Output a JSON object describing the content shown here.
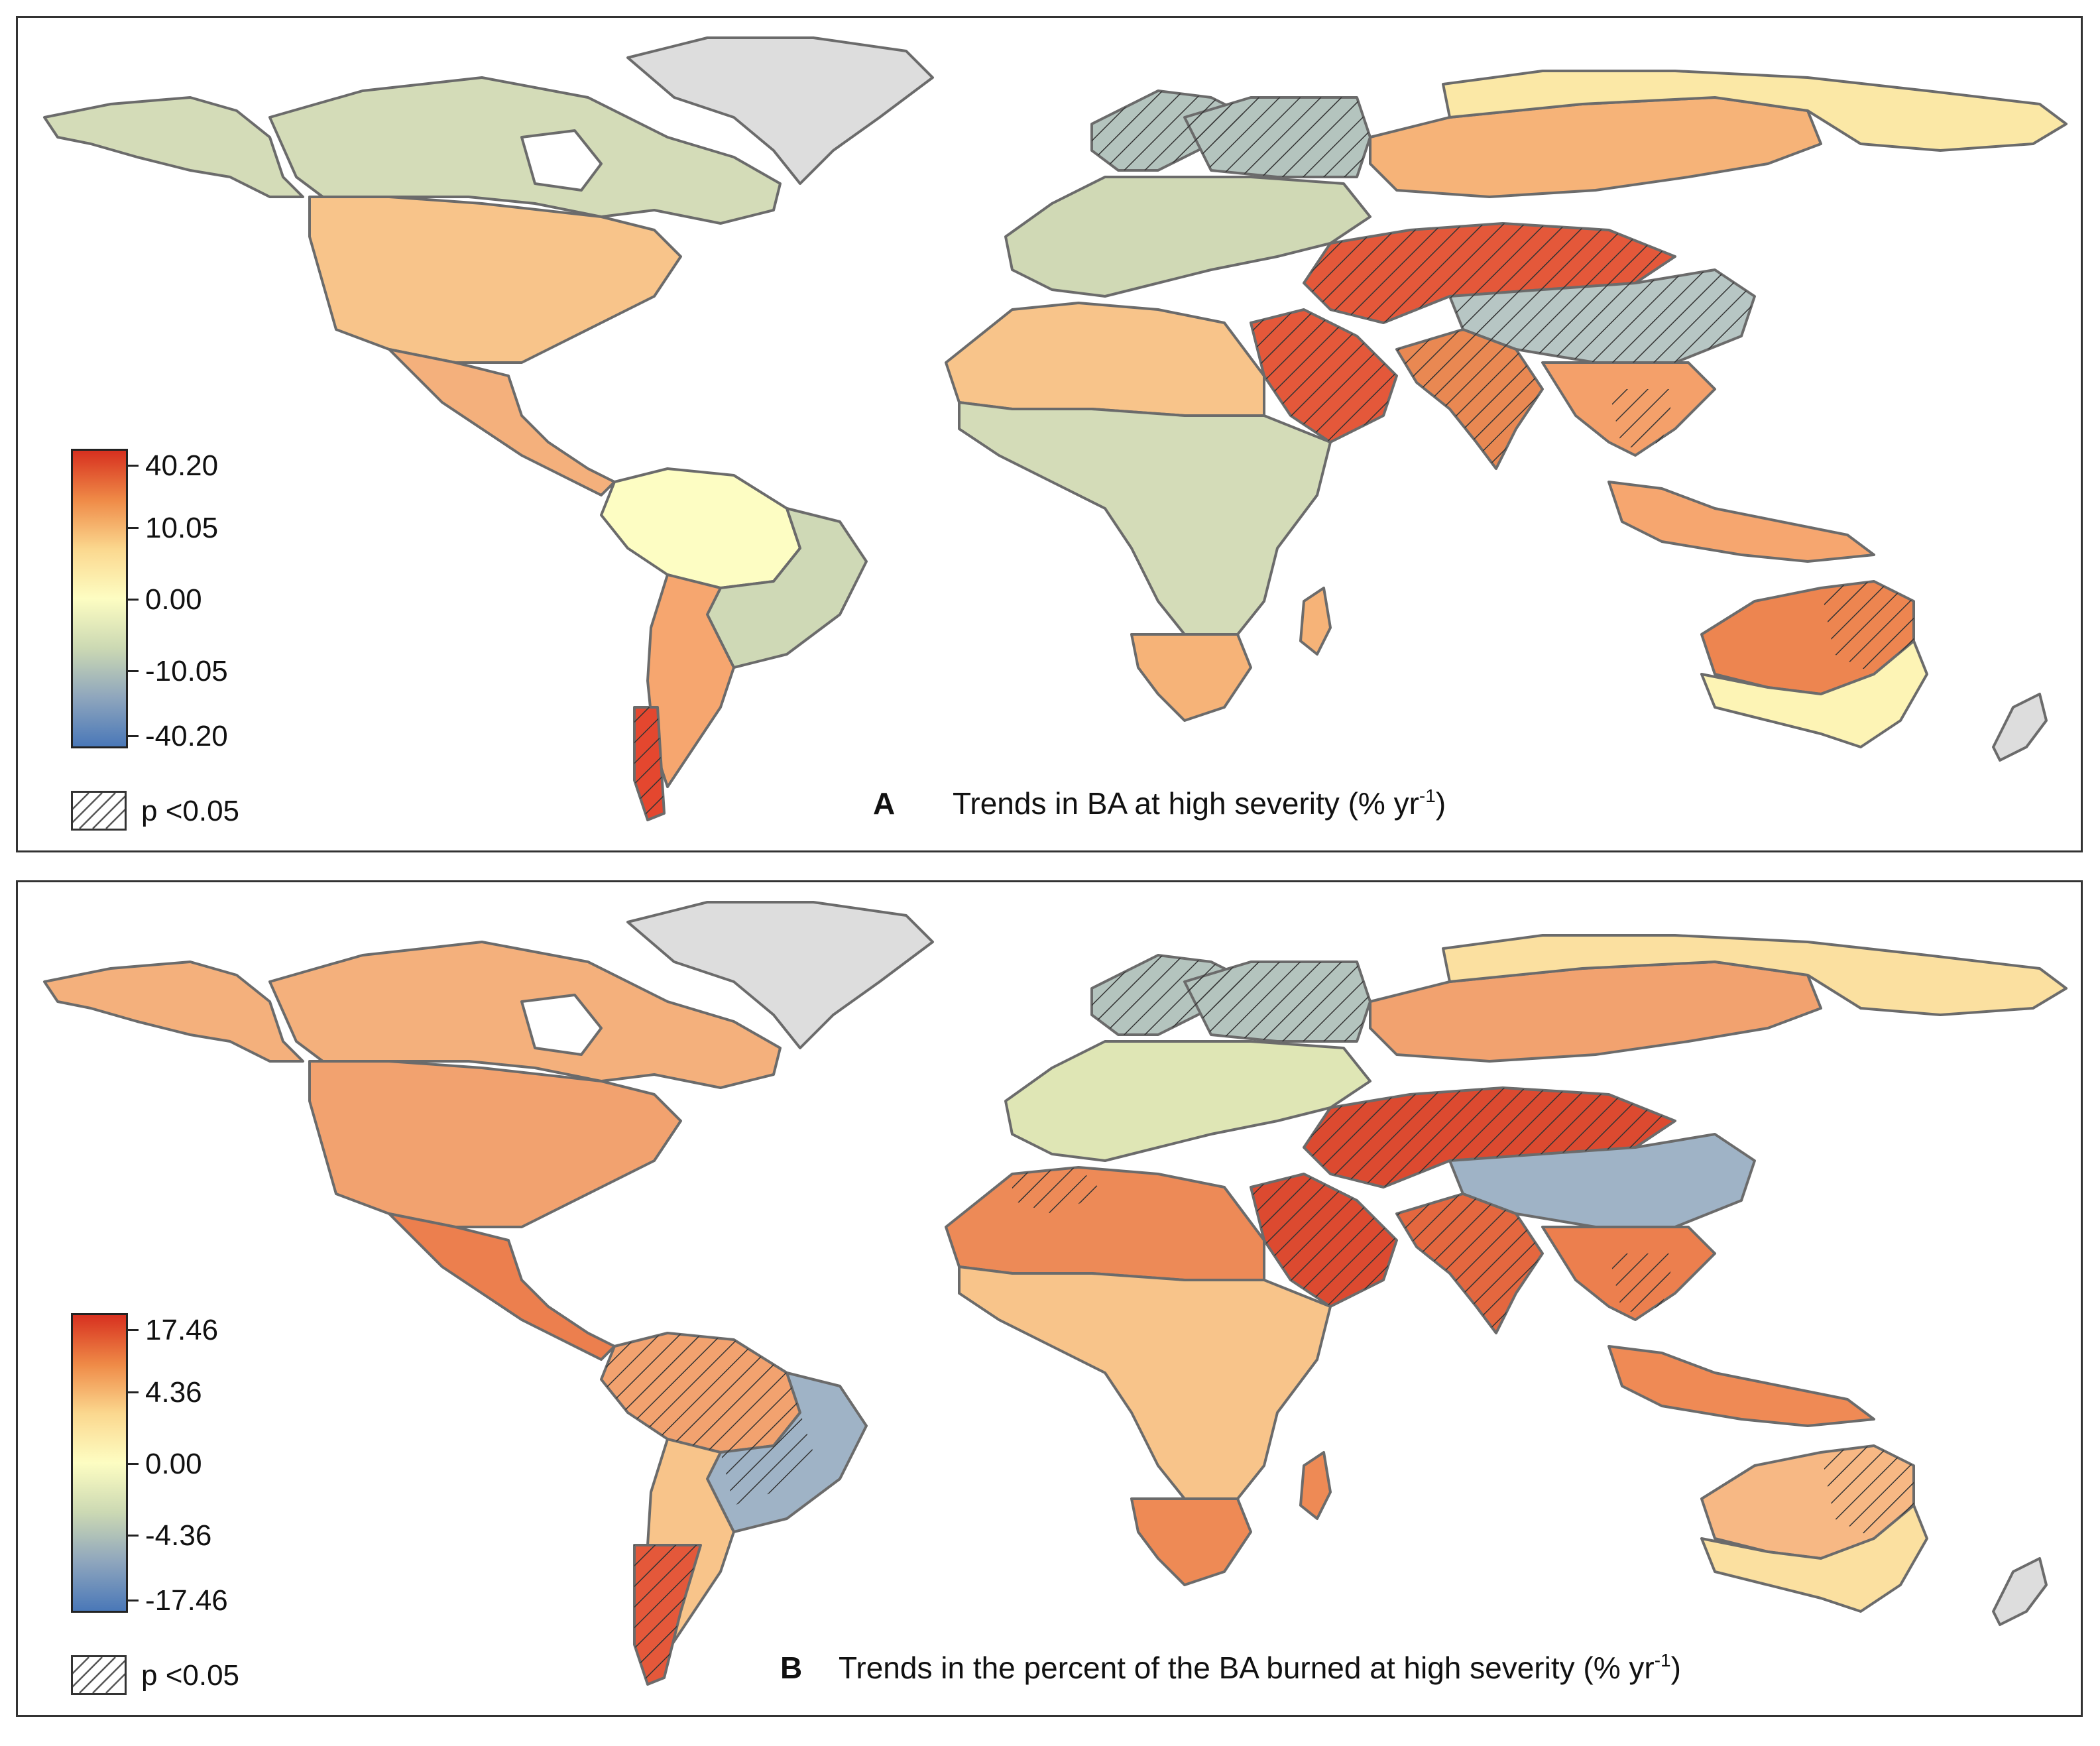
{
  "panels": [
    {
      "letter": "A",
      "title_main": "Trends in BA at high severity (% yr",
      "title_sup": "-1",
      "title_end": ")",
      "legend": {
        "ticks": [
          "40.20",
          "10.05",
          "0.00",
          "-10.05",
          "-40.20"
        ],
        "colors": [
          "#d7301f",
          "#ef8a47",
          "#fbd88f",
          "#fdfdc2",
          "#ccd9b3",
          "#8fa6bd",
          "#4a78b8"
        ],
        "significance_label": "p <0.05"
      },
      "regions": {
        "greenland": "#dddddd",
        "canada_boreal": "#d4dcb8",
        "usa": "#f8c48a",
        "mexico_central_america": "#f4b07c",
        "amazon": "#fdfdc3",
        "east_brazil": "#cfd9b6",
        "south_america_south": "#f6a66f",
        "patagonia": "#e4472f",
        "scandinavia": "#b4c4be",
        "europe": "#d0d9b5",
        "siberia": "#f6b378",
        "east_siberia": "#fbe8a6",
        "north_africa_sahara": "#f8c48a",
        "sahel_central_africa": "#d4dcb8",
        "southern_africa": "#f6b378",
        "arabia": "#e4583a",
        "central_asia": "#e4583a",
        "tibet_china": "#b7c6c4",
        "india": "#e98852",
        "southeast_asia": "#f4a06a",
        "indonesia": "#f6a66f",
        "australia_interior": "#ed8550",
        "australia_coast": "#fdf4b5"
      }
    },
    {
      "letter": "B",
      "title_main": "Trends in the percent of the BA burned at high severity (% yr",
      "title_sup": "-1",
      "title_end": ")",
      "legend": {
        "ticks": [
          "17.46",
          "4.36",
          "0.00",
          "-4.36",
          "-17.46"
        ],
        "colors": [
          "#d7301f",
          "#ef8a47",
          "#fbd88f",
          "#fdfdc2",
          "#ccd9b3",
          "#8fa6bd",
          "#4a78b8"
        ],
        "significance_label": "p <0.05"
      },
      "regions": {
        "greenland": "#dddddd",
        "canada_boreal": "#f4b07c",
        "usa": "#f2a26f",
        "mexico_central_america": "#ec7f4e",
        "amazon": "#f2a26f",
        "east_brazil": "#9fb3c6",
        "south_america_south": "#f8c48a",
        "patagonia": "#e4583a",
        "scandinavia": "#b4c4be",
        "europe": "#dfe6b5",
        "siberia": "#f2a26f",
        "east_siberia": "#fbe0a0",
        "north_africa_sahara": "#ed8a57",
        "sahel_central_africa": "#f8c48a",
        "southern_africa": "#ee8a55",
        "arabia": "#dc4a30",
        "central_asia": "#dc4a30",
        "tibet_china": "#9fb3c6",
        "india": "#e4673f",
        "southeast_asia": "#ec7f4e",
        "indonesia": "#ef8a55",
        "australia_interior": "#f7b884",
        "australia_coast": "#fbe0a0"
      }
    }
  ]
}
